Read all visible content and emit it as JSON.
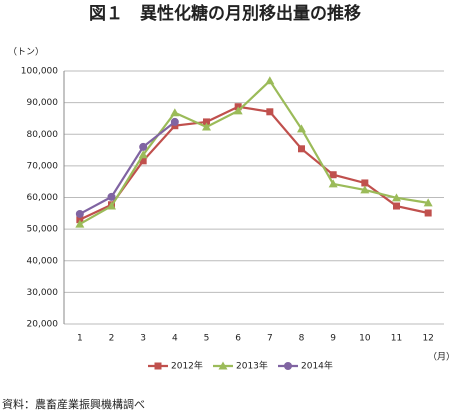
{
  "chart_data": {
    "type": "line",
    "title": "図１　異性化糖の月別移出量の推移",
    "y_label": "（トン）",
    "x_label": "（月）",
    "source": "資料：農畜産業振興機構調べ",
    "categories": [
      "1",
      "2",
      "3",
      "4",
      "5",
      "6",
      "7",
      "8",
      "9",
      "10",
      "11",
      "12"
    ],
    "series": [
      {
        "name": "2012年",
        "color": "#c0504d",
        "marker": "square",
        "values": [
          53000,
          57700,
          71600,
          82700,
          83900,
          88700,
          87100,
          75400,
          67200,
          64600,
          57300,
          55100
        ]
      },
      {
        "name": "2013年",
        "color": "#9bbb59",
        "marker": "triangle",
        "values": [
          51600,
          57300,
          73500,
          86800,
          82300,
          87400,
          96900,
          81700,
          64300,
          62400,
          59900,
          58300
        ]
      },
      {
        "name": "2014年",
        "color": "#8064a2",
        "marker": "circle",
        "values": [
          54800,
          60200,
          76000,
          83900,
          null,
          null,
          null,
          null,
          null,
          null,
          null,
          null
        ]
      }
    ],
    "ylim": [
      20000,
      100000
    ],
    "yticks": [
      {
        "value": 20000,
        "label": "20,000"
      },
      {
        "value": 30000,
        "label": "30,000"
      },
      {
        "value": 40000,
        "label": "40,000"
      },
      {
        "value": 50000,
        "label": "50,000"
      },
      {
        "value": 60000,
        "label": "60,000"
      },
      {
        "value": 70000,
        "label": "70,000"
      },
      {
        "value": 80000,
        "label": "80,000"
      },
      {
        "value": 90000,
        "label": "90,000"
      },
      {
        "value": 100000,
        "label": "100,000"
      }
    ],
    "grid": true,
    "legend": "bottom"
  }
}
